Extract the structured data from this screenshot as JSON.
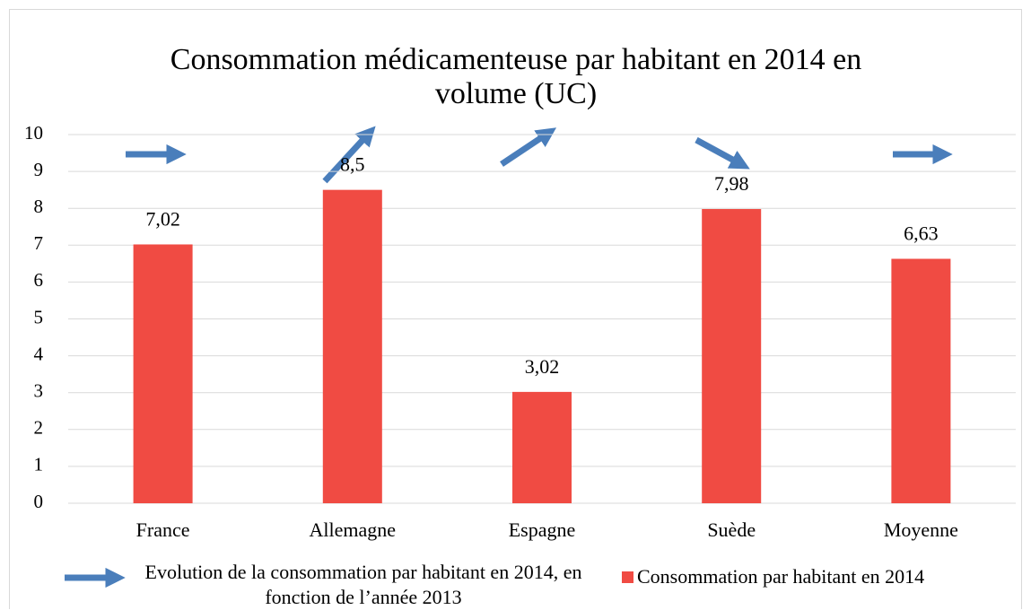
{
  "chart_data": {
    "type": "bar",
    "title": "Consommation médicamenteuse par habitant en 2014 en volume (UC)",
    "categories": [
      "France",
      "Allemagne",
      "Espagne",
      "Suède",
      "Moyenne"
    ],
    "series": [
      {
        "name": "Consommation par habitant en 2014",
        "color": "#f04b43",
        "values": [
          7.02,
          8.5,
          3.02,
          7.98,
          6.63
        ],
        "value_labels": [
          "7,02",
          "8,5",
          "3,02",
          "7,98",
          "6,63"
        ]
      }
    ],
    "annotation": "Evolution de la consommation par habitant en 2014, en fonction de l’année 2013",
    "ylim": [
      0,
      10
    ],
    "yticks": [
      0,
      1,
      2,
      3,
      4,
      5,
      6,
      7,
      8,
      9,
      10
    ],
    "grid": true
  }
}
